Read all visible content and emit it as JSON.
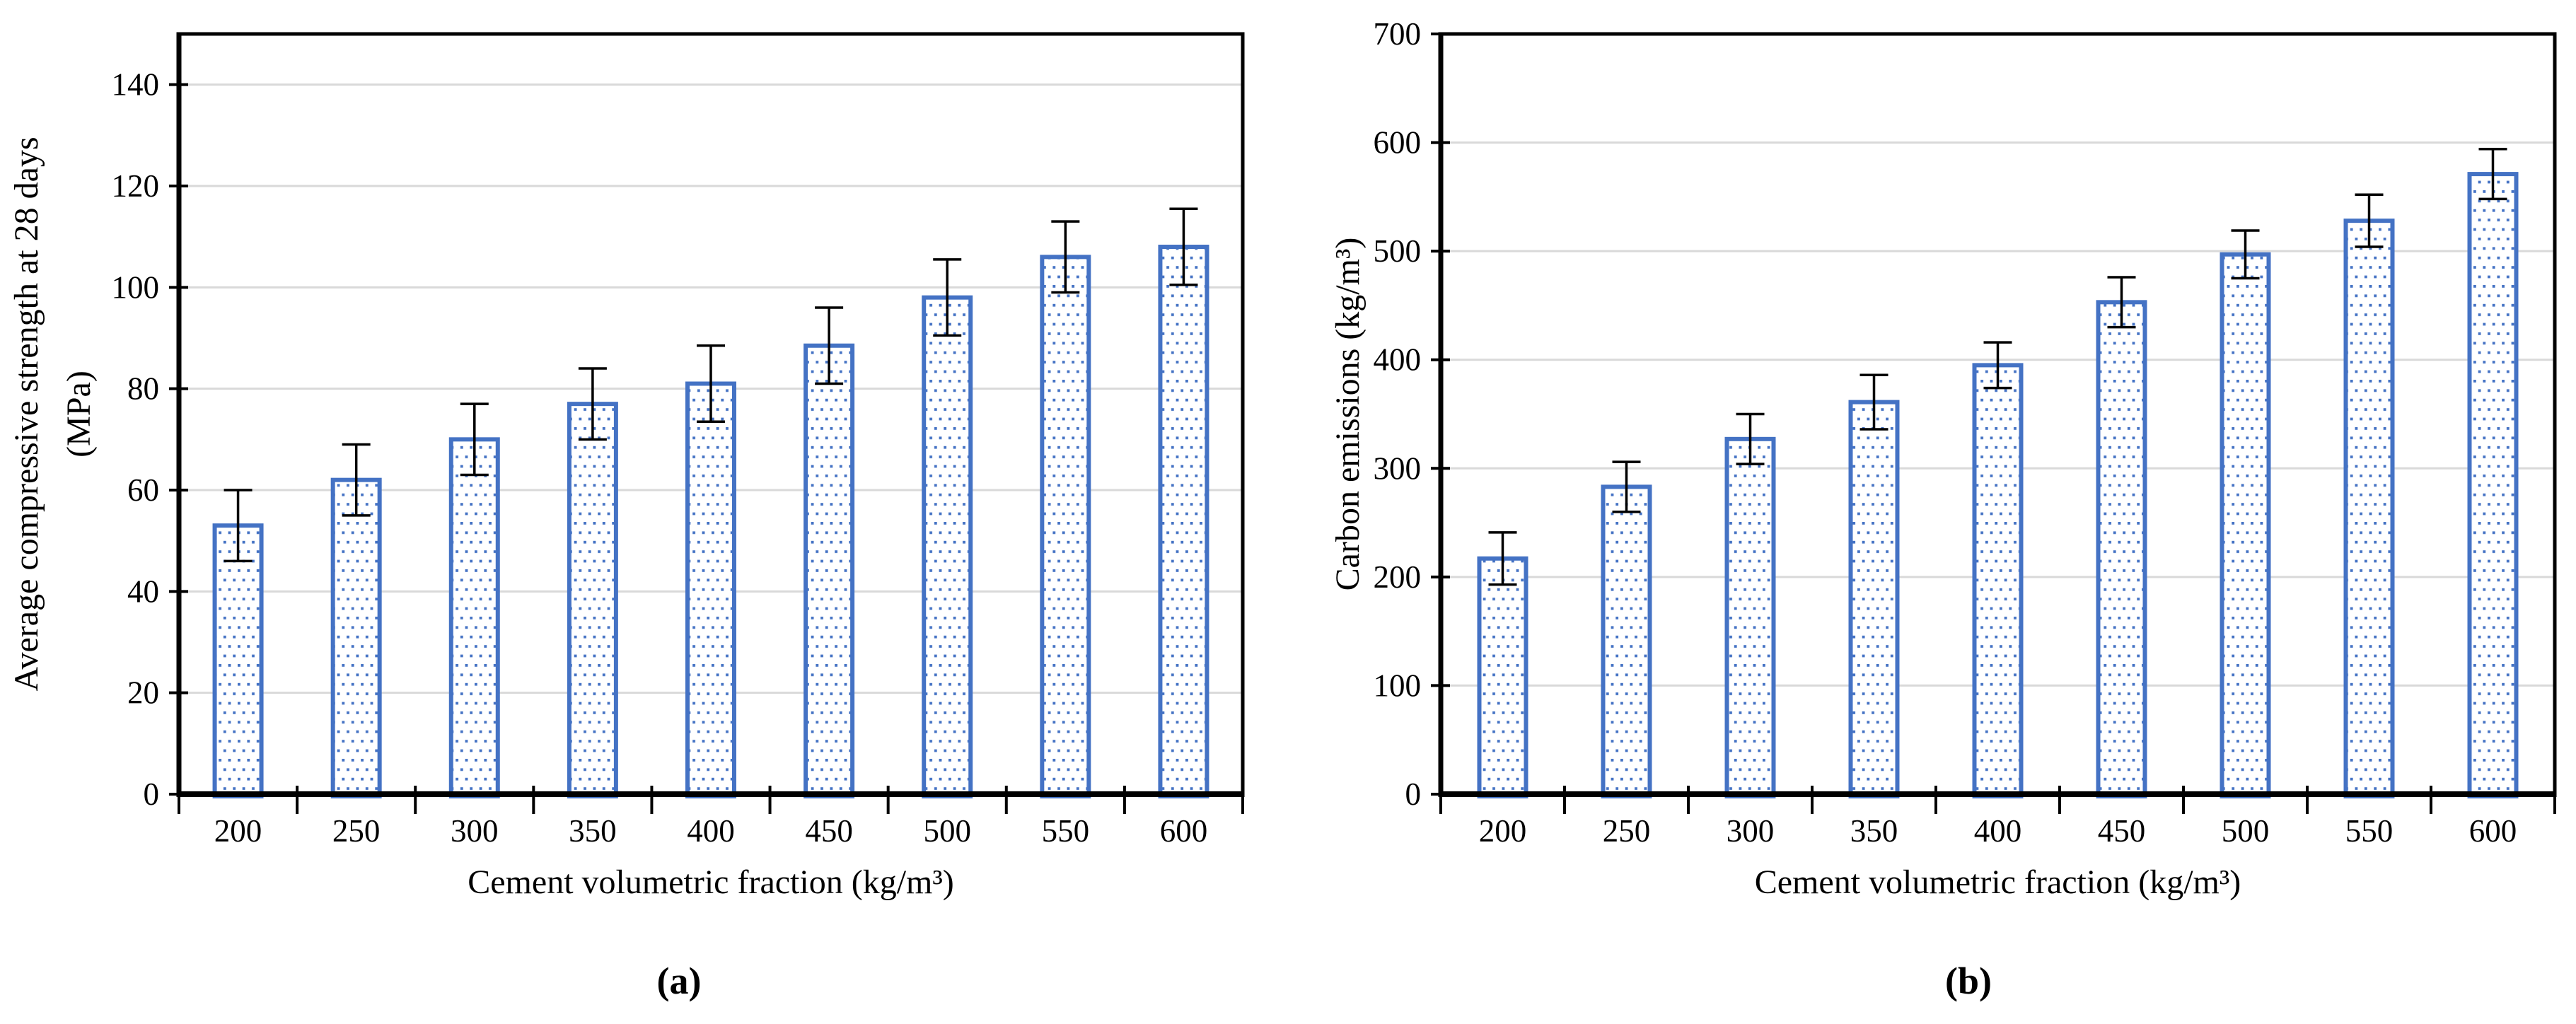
{
  "figure": {
    "background": "#FFFFFF",
    "description": "Two-panel bar chart figure with error bars"
  },
  "style": {
    "bar_border": "#4472C4",
    "bar_dot": "#4472C4",
    "bar_fill": "#FFFFFF",
    "gridline": "#D9D9D9",
    "axis": "#000000",
    "error_bar": "#000000",
    "text": "#000000"
  },
  "chart_data": [
    {
      "type": "bar",
      "panel": "a",
      "title": "",
      "caption": "(a)",
      "categories": [
        "200",
        "250",
        "300",
        "350",
        "400",
        "450",
        "500",
        "550",
        "600"
      ],
      "values": [
        53,
        62,
        70,
        77,
        81,
        88.5,
        98,
        106,
        108
      ],
      "error_bars": [
        7,
        7,
        7,
        7,
        7.5,
        7.5,
        7.5,
        7,
        7.5
      ],
      "xlabel": "Cement volumetric fraction (kg/m³)",
      "ylabel": "Average compressive strength at 28 days (MPa)",
      "ylabel_lines": [
        "Average compressive strength at 28 days",
        "(MPa)"
      ],
      "ylim": [
        0,
        150
      ],
      "yticks": [
        0,
        20,
        40,
        60,
        80,
        100,
        120,
        140
      ],
      "grid": true,
      "legend": "none"
    },
    {
      "type": "bar",
      "panel": "b",
      "title": "",
      "caption": "(b)",
      "categories": [
        "200",
        "250",
        "300",
        "350",
        "400",
        "450",
        "500",
        "550",
        "600"
      ],
      "values": [
        217,
        283,
        327,
        361,
        395,
        453,
        497,
        528,
        571
      ],
      "error_bars": [
        24,
        23,
        23,
        25,
        21,
        23,
        22,
        24,
        23
      ],
      "xlabel": "Cement volumetric fraction (kg/m³)",
      "ylabel": "Carbon emissions (kg/m³)",
      "ylabel_lines": [
        "Carbon emissions (kg/m³)"
      ],
      "ylim": [
        0,
        700
      ],
      "yticks": [
        0,
        100,
        200,
        300,
        400,
        500,
        600,
        700
      ],
      "grid": true,
      "legend": "none"
    }
  ]
}
